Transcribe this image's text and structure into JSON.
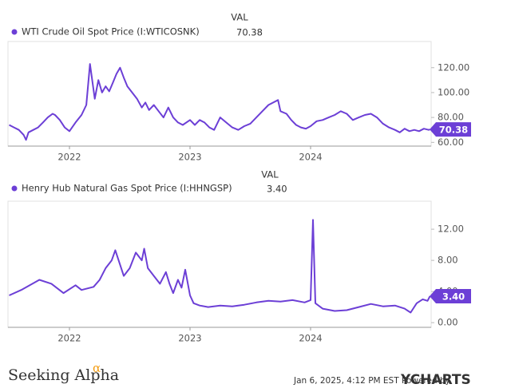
{
  "chart_data": [
    {
      "type": "line",
      "legend_header": "VAL",
      "xlim": [
        2021.49,
        2025.0
      ],
      "xticks": [
        2022,
        2023,
        2024
      ],
      "ylim": [
        57,
        141
      ],
      "yticks": [
        {
          "value": 60,
          "label": "60.00"
        },
        {
          "value": 80,
          "label": "80.00"
        },
        {
          "value": 100,
          "label": "100.00"
        },
        {
          "value": 120,
          "label": "120.00"
        }
      ],
      "x": [
        2021.5,
        2021.54,
        2021.58,
        2021.62,
        2021.64,
        2021.66,
        2021.7,
        2021.74,
        2021.78,
        2021.82,
        2021.86,
        2021.88,
        2021.92,
        2021.96,
        2022.0,
        2022.05,
        2022.1,
        2022.14,
        2022.17,
        2022.21,
        2022.24,
        2022.27,
        2022.3,
        2022.33,
        2022.36,
        2022.39,
        2022.42,
        2022.45,
        2022.48,
        2022.52,
        2022.56,
        2022.6,
        2022.63,
        2022.66,
        2022.7,
        2022.74,
        2022.78,
        2022.82,
        2022.86,
        2022.9,
        2022.94,
        2023.0,
        2023.04,
        2023.08,
        2023.12,
        2023.16,
        2023.2,
        2023.25,
        2023.3,
        2023.35,
        2023.4,
        2023.45,
        2023.5,
        2023.55,
        2023.6,
        2023.65,
        2023.73,
        2023.75,
        2023.8,
        2023.84,
        2023.88,
        2023.92,
        2023.96,
        2024.0,
        2024.05,
        2024.1,
        2024.15,
        2024.2,
        2024.25,
        2024.3,
        2024.35,
        2024.4,
        2024.45,
        2024.5,
        2024.55,
        2024.6,
        2024.65,
        2024.7,
        2024.74,
        2024.78,
        2024.82,
        2024.86,
        2024.9,
        2024.94,
        2024.98,
        2024.99
      ],
      "series": [
        {
          "name": "WTI Crude Oil Spot Price (I:WTICOSNK)",
          "color": "#6c3fd6",
          "last_label": "70.38",
          "values": [
            74,
            72,
            70,
            66,
            62,
            68,
            70,
            72,
            76,
            80,
            83,
            82,
            78,
            72,
            69,
            76,
            82,
            90,
            123,
            95,
            110,
            100,
            105,
            101,
            108,
            115,
            120,
            112,
            105,
            100,
            95,
            88,
            92,
            86,
            90,
            85,
            80,
            88,
            80,
            76,
            74,
            78,
            74,
            78,
            76,
            72,
            70,
            80,
            76,
            72,
            70,
            73,
            75,
            80,
            85,
            90,
            94,
            85,
            83,
            78,
            74,
            72,
            71,
            73,
            77,
            78,
            80,
            82,
            85,
            83,
            78,
            80,
            82,
            83,
            80,
            75,
            72,
            70,
            68,
            71,
            69,
            70,
            69,
            71,
            70,
            70.38
          ]
        }
      ]
    },
    {
      "type": "line",
      "legend_header": "VAL",
      "xlim": [
        2021.49,
        2025.0
      ],
      "xticks": [
        2022,
        2023,
        2024
      ],
      "ylim": [
        -0.6,
        15.6
      ],
      "yticks": [
        {
          "value": 0,
          "label": "0.00"
        },
        {
          "value": 4,
          "label": "4.00"
        },
        {
          "value": 8,
          "label": "8.00"
        },
        {
          "value": 12,
          "label": "12.00"
        }
      ],
      "x": [
        2021.5,
        2021.6,
        2021.75,
        2021.85,
        2021.95,
        2022.05,
        2022.1,
        2022.2,
        2022.25,
        2022.3,
        2022.35,
        2022.38,
        2022.45,
        2022.5,
        2022.55,
        2022.6,
        2022.62,
        2022.65,
        2022.7,
        2022.75,
        2022.8,
        2022.83,
        2022.86,
        2022.9,
        2022.93,
        2022.96,
        2023.0,
        2023.03,
        2023.08,
        2023.15,
        2023.25,
        2023.35,
        2023.45,
        2023.55,
        2023.65,
        2023.75,
        2023.85,
        2023.95,
        2024.0,
        2024.02,
        2024.04,
        2024.1,
        2024.2,
        2024.3,
        2024.4,
        2024.5,
        2024.6,
        2024.7,
        2024.78,
        2024.83,
        2024.88,
        2024.93,
        2024.97,
        2024.99
      ],
      "series": [
        {
          "name": "Henry Hub Natural Gas Spot Price (I:HHNGSP)",
          "color": "#6c3fd6",
          "last_label": "3.40",
          "values": [
            3.5,
            4.2,
            5.5,
            5.0,
            3.8,
            4.8,
            4.2,
            4.6,
            5.5,
            7,
            8,
            9.3,
            6,
            7,
            9,
            8,
            9.5,
            7,
            6,
            5,
            6.5,
            5,
            3.8,
            5.5,
            4.5,
            6.8,
            3.5,
            2.5,
            2.2,
            2.0,
            2.2,
            2.1,
            2.3,
            2.6,
            2.8,
            2.7,
            2.9,
            2.6,
            2.9,
            13.2,
            2.5,
            1.8,
            1.5,
            1.6,
            2.0,
            2.4,
            2.1,
            2.2,
            1.8,
            1.3,
            2.5,
            3.0,
            2.8,
            3.4
          ]
        }
      ]
    }
  ],
  "footer": {
    "logo": "Seeking Alpha",
    "logo_mark": "α",
    "stamp": "Jan 6, 2025, 4:12 PM EST Powered by",
    "brand": "YCHARTS"
  }
}
